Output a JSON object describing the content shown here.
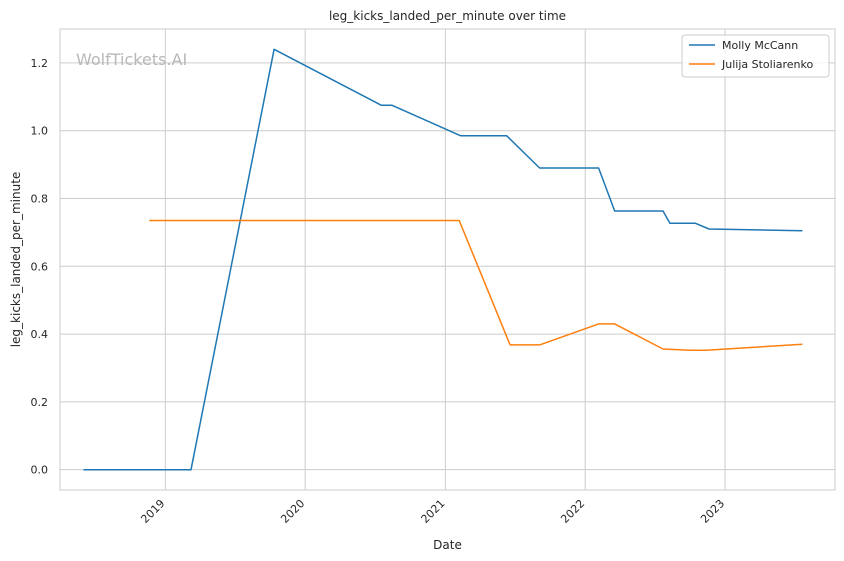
{
  "chart_data": {
    "type": "line",
    "title": "leg_kicks_landed_per_minute over time",
    "xlabel": "Date",
    "ylabel": "leg_kicks_landed_per_minute",
    "watermark": "WolfTickets.AI",
    "xlim": [
      "2018-04-01",
      "2023-10-15"
    ],
    "ylim": [
      -0.06,
      1.3
    ],
    "x_ticks": [
      "2019-01-01",
      "2020-01-01",
      "2021-01-01",
      "2022-01-01",
      "2023-01-01"
    ],
    "x_tick_labels": [
      "2019",
      "2020",
      "2021",
      "2022",
      "2023"
    ],
    "y_ticks": [
      0.0,
      0.2,
      0.4,
      0.6,
      0.8,
      1.0,
      1.2
    ],
    "y_tick_labels": [
      "0.0",
      "0.2",
      "0.4",
      "0.6",
      "0.8",
      "1.0",
      "1.2"
    ],
    "grid": true,
    "legend_position": "top-right",
    "series": [
      {
        "name": "Molly McCann",
        "color": "#1f77b4",
        "points": [
          [
            "2018-06-01",
            0.0
          ],
          [
            "2019-03-09",
            0.0
          ],
          [
            "2019-10-12",
            1.24
          ],
          [
            "2020-07-18",
            1.075
          ],
          [
            "2020-08-15",
            1.075
          ],
          [
            "2021-02-10",
            0.985
          ],
          [
            "2021-06-10",
            0.985
          ],
          [
            "2021-09-04",
            0.89
          ],
          [
            "2022-02-05",
            0.89
          ],
          [
            "2022-03-19",
            0.763
          ],
          [
            "2022-07-23",
            0.763
          ],
          [
            "2022-08-10",
            0.727
          ],
          [
            "2022-10-15",
            0.727
          ],
          [
            "2022-11-20",
            0.71
          ],
          [
            "2023-07-22",
            0.705
          ]
        ]
      },
      {
        "name": "Julija Stoliarenko",
        "color": "#ff7f0e",
        "points": [
          [
            "2018-11-20",
            0.735
          ],
          [
            "2021-02-06",
            0.735
          ],
          [
            "2021-06-19",
            0.368
          ],
          [
            "2021-09-04",
            0.368
          ],
          [
            "2022-02-05",
            0.43
          ],
          [
            "2022-03-19",
            0.43
          ],
          [
            "2022-07-23",
            0.356
          ],
          [
            "2022-10-01",
            0.352
          ],
          [
            "2022-11-12",
            0.352
          ],
          [
            "2023-07-22",
            0.37
          ]
        ]
      }
    ]
  }
}
